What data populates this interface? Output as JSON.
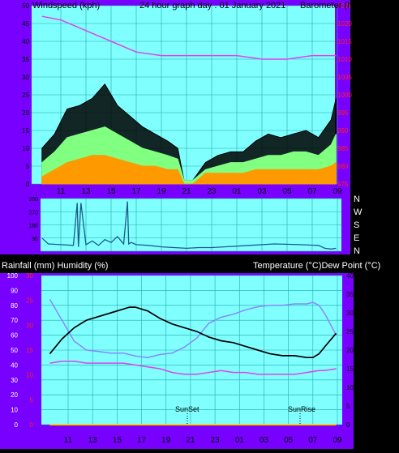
{
  "colors": {
    "frame": "#7700ff",
    "plot_bg": "#80ffff",
    "grid": "#22aaaa",
    "gust": "#000000",
    "wind_avg": "#80ff80",
    "wind_min": "#ff9900",
    "barometer": "#dd44ee",
    "direction": "#1e5a8a",
    "temperature": "#000000",
    "humidity": "#8888ff",
    "dewpoint": "#dd44ee",
    "rain_axis": "#ff2222",
    "rainfall": "#ffcc00"
  },
  "header": {
    "wind_label": "Windspeed (kph)",
    "title": "24 hour graph day : 01 January 2021",
    "baro_label": "Barometer (hpa)"
  },
  "compass_labels": [
    "N",
    "W",
    "S",
    "E",
    "N"
  ],
  "lower_header": {
    "rain_humidity_label": "Rainfall (mm)  Humidity (%)",
    "temp_dew_label": "Temperature (°C)Dew Point (°C)"
  },
  "x_ticks": [
    "11",
    "13",
    "15",
    "17",
    "19",
    "21",
    "23",
    "01",
    "03",
    "05",
    "07",
    "09"
  ],
  "chart_data": [
    {
      "type": "line",
      "name": "wind-barometer",
      "x_ticks": [
        "11",
        "13",
        "15",
        "17",
        "19",
        "21",
        "23",
        "01",
        "03",
        "05",
        "07",
        "09"
      ],
      "y_left": {
        "label": "Windspeed (kph)",
        "ticks": [
          0,
          5,
          10,
          15,
          20,
          25,
          30,
          35,
          40,
          45,
          50
        ],
        "ylim": [
          0,
          50
        ]
      },
      "y_right": {
        "label": "Barometer (hpa)",
        "ticks": [
          975,
          980,
          985,
          990,
          995,
          1000,
          1005,
          1010,
          1015,
          1020,
          1025
        ],
        "ylim": [
          975,
          1025
        ]
      },
      "series": [
        {
          "id": "gust",
          "x": [
            9.5,
            10.5,
            11.5,
            12.5,
            13.5,
            14.5,
            15.5,
            16.5,
            17.5,
            18.5,
            19.5,
            20.3,
            20.8,
            21.5,
            22.5,
            23.5,
            24.5,
            25.5,
            26.5,
            27.5,
            28.5,
            29.5,
            30.5,
            31.5,
            32.5,
            32.9
          ],
          "values": [
            10,
            14,
            21,
            22,
            24,
            28,
            22,
            19,
            16,
            14,
            12,
            10,
            1,
            1,
            6,
            8,
            9,
            9,
            12,
            14,
            13,
            14,
            15,
            13,
            18,
            24
          ]
        },
        {
          "id": "wind_avg",
          "x": [
            9.5,
            10.5,
            11.5,
            12.5,
            13.5,
            14.5,
            15.5,
            16.5,
            17.5,
            18.5,
            19.5,
            20.3,
            20.8,
            21.5,
            22.5,
            23.5,
            24.5,
            25.5,
            26.5,
            27.5,
            28.5,
            29.5,
            30.5,
            31.5,
            32.5,
            32.9
          ],
          "values": [
            6,
            9,
            13,
            14,
            15,
            16,
            14,
            12,
            10,
            9,
            8,
            7,
            1,
            1,
            4,
            5,
            6,
            6,
            7,
            8,
            8,
            9,
            9,
            8,
            11,
            14
          ]
        },
        {
          "id": "wind_min",
          "x": [
            9.5,
            10.5,
            11.5,
            12.5,
            13.5,
            14.5,
            15.5,
            16.5,
            17.5,
            18.5,
            19.5,
            20.3,
            20.8,
            21.5,
            22.5,
            23.5,
            24.5,
            25.5,
            26.5,
            27.5,
            28.5,
            29.5,
            30.5,
            31.5,
            32.5,
            32.9
          ],
          "values": [
            2,
            4,
            6,
            7,
            8,
            8,
            7,
            6,
            5,
            5,
            4,
            4,
            0,
            0,
            3,
            3,
            3,
            3,
            4,
            4,
            4,
            4,
            4,
            4,
            5,
            6
          ]
        },
        {
          "id": "barometer",
          "axis": "right",
          "x": [
            9.5,
            11,
            13,
            15,
            17,
            19,
            21,
            23,
            25,
            27,
            29,
            31,
            32.9
          ],
          "values": [
            1022,
            1021,
            1018,
            1015,
            1012,
            1011,
            1011,
            1011,
            1011,
            1010,
            1010,
            1011,
            1011
          ]
        }
      ]
    },
    {
      "type": "line",
      "name": "wind-direction",
      "x_ticks": [
        "11",
        "13",
        "15",
        "17",
        "19",
        "21",
        "23",
        "01",
        "03",
        "05",
        "07",
        "09"
      ],
      "y_left": {
        "ticks": [
          90,
          180,
          270,
          360
        ],
        "ylim": [
          0,
          360
        ]
      },
      "y_right": {
        "ticks": [
          "N",
          "W",
          "S",
          "E",
          "N"
        ]
      },
      "series": [
        {
          "id": "direction",
          "x": [
            9.5,
            10,
            11,
            12,
            12.3,
            12.4,
            12.6,
            13,
            13.5,
            14,
            14.5,
            15,
            15.5,
            16,
            16.3,
            16.4,
            16.6,
            17,
            18,
            19,
            20,
            21,
            22,
            23,
            24,
            26,
            28,
            30,
            31.5,
            32,
            32.5,
            32.9
          ],
          "values": [
            90,
            50,
            45,
            40,
            330,
            30,
            330,
            45,
            70,
            40,
            80,
            60,
            100,
            50,
            340,
            50,
            60,
            45,
            40,
            30,
            25,
            20,
            25,
            25,
            30,
            40,
            50,
            45,
            40,
            20,
            15,
            20
          ]
        }
      ]
    },
    {
      "type": "line",
      "name": "temperature-humidity",
      "x_ticks": [
        "11",
        "13",
        "15",
        "17",
        "19",
        "21",
        "23",
        "01",
        "03",
        "05",
        "07",
        "09"
      ],
      "annotations": [
        "SunSet",
        "SunRise"
      ],
      "y_left": {
        "label": "Humidity (%)",
        "ticks": [
          0,
          10,
          20,
          30,
          40,
          50,
          60,
          70,
          80,
          90,
          100
        ],
        "ylim": [
          0,
          100
        ]
      },
      "y_left_inner": {
        "label": "Rainfall (mm)",
        "ticks": [
          0,
          5,
          10,
          15,
          20,
          25,
          30
        ],
        "ylim": [
          0,
          30
        ]
      },
      "y_right": {
        "label": "Temperature (°C)",
        "ticks": [
          0,
          5,
          10,
          15,
          20,
          25,
          30,
          35,
          40
        ],
        "ylim": [
          0,
          40
        ]
      },
      "series": [
        {
          "id": "temperature",
          "axis": "right",
          "x": [
            9.5,
            10.5,
            11.5,
            12.5,
            13.5,
            14.5,
            15.5,
            16,
            16.5,
            17.5,
            18.5,
            19.5,
            20.5,
            21.5,
            22.5,
            23.5,
            24.5,
            25.5,
            26.5,
            27.5,
            28.5,
            29.5,
            30.5,
            31,
            31.5,
            32,
            32.9
          ],
          "values": [
            19,
            23,
            26,
            28,
            29,
            30,
            31,
            31.5,
            31.5,
            30.5,
            28.5,
            27,
            26,
            25,
            23.5,
            22.5,
            22,
            21,
            20,
            19,
            18.5,
            18.5,
            18,
            18,
            19,
            21,
            24.5
          ]
        },
        {
          "id": "humidity",
          "x": [
            9.5,
            10.5,
            11.5,
            12.5,
            13.5,
            14.5,
            15.5,
            16.5,
            17.5,
            18.5,
            19.5,
            20,
            20.5,
            21.5,
            22.5,
            23.5,
            24.5,
            25.5,
            26.5,
            27.5,
            28.5,
            29.5,
            30.5,
            31,
            31.5,
            32,
            32.9
          ],
          "values": [
            84,
            70,
            56,
            50,
            49,
            48,
            48,
            46,
            45,
            47,
            48,
            50,
            52,
            58,
            68,
            72,
            74,
            77,
            79,
            80,
            80,
            81,
            81,
            82,
            80,
            74,
            60
          ]
        },
        {
          "id": "dewpoint",
          "axis": "right",
          "x": [
            9.5,
            10.5,
            11.5,
            12.5,
            13.5,
            14.5,
            15.5,
            16.5,
            17.5,
            18.5,
            19.5,
            20.5,
            21.5,
            22.5,
            23.5,
            24.5,
            25.5,
            26.5,
            27.5,
            28.5,
            29.5,
            30.5,
            31.5,
            32,
            32.9
          ],
          "values": [
            16.5,
            17,
            17,
            16.5,
            16.5,
            16.5,
            16.5,
            16,
            15.5,
            15,
            14,
            13.5,
            13.5,
            14,
            14.5,
            14,
            14,
            13.5,
            13.5,
            13.5,
            13.5,
            14,
            14.5,
            14.5,
            15
          ]
        },
        {
          "id": "rainfall",
          "axis": "left_inner",
          "x": [
            9.5,
            32.9
          ],
          "values": [
            0,
            0
          ]
        }
      ]
    }
  ]
}
